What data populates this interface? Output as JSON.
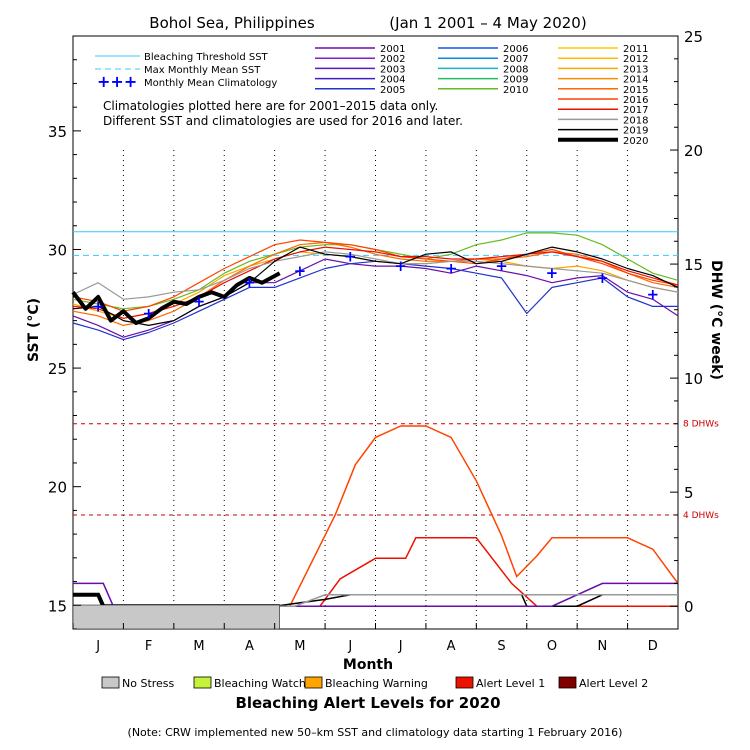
{
  "chart_data": {
    "type": "line",
    "title": "Bohol Sea, Philippines",
    "date_range": "(Jan 1 2001 – 4 May 2020)",
    "xlabel": "Month",
    "ylabel_left": "SST (°C)",
    "ylabel_right": "DHW (°C week)",
    "ylim_left": [
      14,
      39
    ],
    "ylim_right": [
      -1,
      25
    ],
    "left_ticks": [
      15,
      20,
      25,
      30,
      35
    ],
    "right_ticks": [
      0,
      5,
      10,
      15,
      20,
      25
    ],
    "months": [
      "J",
      "F",
      "M",
      "A",
      "M",
      "J",
      "J",
      "A",
      "S",
      "O",
      "N",
      "D"
    ],
    "thresholds": {
      "bleaching_threshold_sst": 30.75,
      "max_monthly_mean_sst": 29.75,
      "dhw_lines": [
        {
          "label": "4 DHWs",
          "value": 4
        },
        {
          "label": "8 DHWs",
          "value": 8
        }
      ]
    },
    "legend_reference": [
      {
        "label": "Bleaching Threshold SST",
        "style": "solid",
        "color": "#33ccff"
      },
      {
        "label": "Max Monthly Mean SST",
        "style": "dashed",
        "color": "#33ccff"
      },
      {
        "label": "Monthly Mean Climatology",
        "style": "plus",
        "color": "#0000ff"
      }
    ],
    "notes": [
      "Climatologies plotted here are for 2001–2015 data only.",
      "Different SST and climatologies are used for 2016 and later."
    ],
    "year_legend": [
      {
        "year": "2001",
        "color": "#6a0dad"
      },
      {
        "year": "2002",
        "color": "#7b1fd1"
      },
      {
        "year": "2003",
        "color": "#5e17c9"
      },
      {
        "year": "2004",
        "color": "#3f1fbf"
      },
      {
        "year": "2005",
        "color": "#2233cc"
      },
      {
        "year": "2006",
        "color": "#1155ee"
      },
      {
        "year": "2007",
        "color": "#0a88e0"
      },
      {
        "year": "2008",
        "color": "#16b3c9"
      },
      {
        "year": "2009",
        "color": "#22bb66"
      },
      {
        "year": "2010",
        "color": "#66bb22"
      },
      {
        "year": "2011",
        "color": "#ffcc00"
      },
      {
        "year": "2012",
        "color": "#ffbb00"
      },
      {
        "year": "2013",
        "color": "#ffa500"
      },
      {
        "year": "2014",
        "color": "#ff8c00"
      },
      {
        "year": "2015",
        "color": "#ff6a00"
      },
      {
        "year": "2016",
        "color": "#ff4400"
      },
      {
        "year": "2017",
        "color": "#ee1100"
      },
      {
        "year": "2018",
        "color": "#999999"
      },
      {
        "year": "2019",
        "color": "#000000"
      },
      {
        "year": "2020",
        "color": "#000000",
        "bold": true
      }
    ],
    "climatology": {
      "x": [
        0.5,
        1.5,
        2.5,
        3.5,
        4.5,
        5.5,
        6.5,
        7.5,
        8.5,
        9.5,
        10.5,
        11.5
      ],
      "values": [
        27.6,
        27.3,
        27.8,
        28.6,
        29.1,
        29.7,
        29.3,
        29.2,
        29.3,
        29.0,
        28.8,
        28.1
      ]
    },
    "series": [
      {
        "name": "2001",
        "x": [
          0,
          0.5,
          1,
          1.5,
          2,
          2.5,
          3,
          3.5,
          4,
          4.5,
          5,
          5.5,
          6,
          6.5,
          7,
          7.5,
          8,
          8.5,
          9,
          9.5,
          10,
          10.5,
          11,
          11.5,
          12
        ],
        "values": [
          27.2,
          26.8,
          26.3,
          26.6,
          27.0,
          27.6,
          28.0,
          28.6,
          28.6,
          29.1,
          29.6,
          29.4,
          29.3,
          29.3,
          29.2,
          29.0,
          29.3,
          29.1,
          28.9,
          28.6,
          28.8,
          28.9,
          28.2,
          27.9,
          27.2
        ]
      },
      {
        "name": "2005",
        "x": [
          0,
          0.5,
          1,
          1.5,
          2,
          2.5,
          3,
          3.5,
          4,
          4.5,
          5,
          5.5,
          6,
          6.5,
          7,
          7.5,
          8,
          8.5,
          9,
          9.5,
          10,
          10.5,
          11,
          11.5,
          12
        ],
        "values": [
          26.9,
          26.6,
          26.2,
          26.5,
          26.9,
          27.4,
          27.9,
          28.4,
          28.4,
          28.8,
          29.2,
          29.4,
          29.5,
          29.4,
          29.3,
          29.2,
          29.0,
          28.8,
          27.3,
          28.4,
          28.6,
          28.8,
          28.0,
          27.6,
          27.6
        ]
      },
      {
        "name": "2010",
        "x": [
          0,
          0.5,
          1,
          1.5,
          2,
          2.5,
          3,
          3.5,
          4,
          4.5,
          5,
          5.5,
          6,
          6.5,
          7,
          7.5,
          8,
          8.5,
          9,
          9.5,
          10,
          10.5,
          11,
          11.5,
          12
        ],
        "values": [
          27.9,
          27.7,
          27.5,
          27.6,
          27.9,
          28.3,
          29.0,
          29.5,
          29.8,
          30.1,
          30.2,
          30.2,
          30.0,
          29.8,
          29.6,
          29.8,
          30.2,
          30.4,
          30.7,
          30.7,
          30.6,
          30.2,
          29.6,
          29.0,
          28.7
        ]
      },
      {
        "name": "2013",
        "x": [
          0,
          0.5,
          1,
          1.5,
          2,
          2.5,
          3,
          3.5,
          4,
          4.5,
          5,
          5.5,
          6,
          6.5,
          7,
          7.5,
          8,
          8.5,
          9,
          9.5,
          10,
          10.5,
          11,
          11.5,
          12
        ],
        "values": [
          27.7,
          27.4,
          27.1,
          27.3,
          27.7,
          28.2,
          28.9,
          29.3,
          29.6,
          29.9,
          29.8,
          29.7,
          29.5,
          29.4,
          29.4,
          29.5,
          29.6,
          29.5,
          29.3,
          29.2,
          29.3,
          29.1,
          28.7,
          28.4,
          28.2
        ]
      },
      {
        "name": "2015",
        "x": [
          0,
          0.5,
          1,
          1.5,
          2,
          2.5,
          3,
          3.5,
          4,
          4.5,
          5,
          5.5,
          6,
          6.5,
          7,
          7.5,
          8,
          8.5,
          9,
          9.5,
          10,
          10.5,
          11,
          11.5,
          12
        ],
        "values": [
          27.4,
          27.2,
          26.8,
          27.0,
          27.4,
          28.0,
          28.7,
          29.3,
          29.8,
          30.2,
          30.3,
          30.1,
          29.8,
          29.6,
          29.5,
          29.5,
          29.6,
          29.6,
          29.7,
          29.9,
          29.8,
          29.5,
          29.0,
          28.6,
          28.4
        ]
      },
      {
        "name": "2016",
        "x": [
          0,
          0.5,
          1,
          1.5,
          2,
          2.5,
          3,
          3.5,
          4,
          4.5,
          5,
          5.5,
          6,
          6.5,
          7,
          7.5,
          8,
          8.5,
          9,
          9.5,
          10,
          10.5,
          11,
          11.5,
          12
        ],
        "values": [
          28.0,
          27.8,
          27.4,
          27.6,
          28.0,
          28.6,
          29.2,
          29.7,
          30.2,
          30.4,
          30.3,
          30.2,
          30.0,
          29.7,
          29.6,
          29.5,
          29.4,
          29.6,
          29.8,
          30.0,
          29.7,
          29.4,
          29.0,
          28.7,
          28.5
        ]
      },
      {
        "name": "2017",
        "x": [
          0,
          0.5,
          1,
          1.5,
          2,
          2.5,
          3,
          3.5,
          4,
          4.5,
          5,
          5.5,
          6,
          6.5,
          7,
          7.5,
          8,
          8.5,
          9,
          9.5,
          10,
          10.5,
          11,
          11.5,
          12
        ],
        "values": [
          27.6,
          27.5,
          27.1,
          27.3,
          27.6,
          28.0,
          28.6,
          29.1,
          29.6,
          29.9,
          30.1,
          30.0,
          29.9,
          29.7,
          29.7,
          29.6,
          29.6,
          29.7,
          29.8,
          29.9,
          29.7,
          29.5,
          29.1,
          28.8,
          28.5
        ]
      },
      {
        "name": "2018",
        "x": [
          0,
          0.5,
          1,
          1.5,
          2,
          2.5,
          3,
          3.5,
          4,
          4.5,
          5,
          5.5,
          6,
          6.5,
          7,
          7.5,
          8,
          8.5,
          9,
          9.5,
          10,
          10.5,
          11,
          11.5,
          12
        ],
        "values": [
          28.1,
          28.6,
          27.9,
          28.0,
          28.2,
          28.3,
          28.7,
          29.2,
          29.5,
          29.7,
          29.9,
          29.8,
          29.6,
          29.4,
          29.4,
          29.5,
          29.5,
          29.4,
          29.3,
          29.2,
          29.1,
          29.0,
          28.7,
          28.4,
          28.2
        ]
      },
      {
        "name": "2019",
        "x": [
          0,
          0.5,
          1,
          1.5,
          2,
          2.5,
          3,
          3.5,
          4,
          4.5,
          5,
          5.5,
          6,
          6.5,
          7,
          7.5,
          8,
          8.5,
          9,
          9.5,
          10,
          10.5,
          11,
          11.5,
          12
        ],
        "values": [
          27.5,
          27.6,
          27.0,
          26.8,
          27.0,
          27.6,
          28.0,
          28.6,
          29.5,
          30.1,
          29.8,
          29.7,
          29.5,
          29.4,
          29.8,
          29.9,
          29.4,
          29.5,
          29.8,
          30.1,
          29.9,
          29.6,
          29.2,
          28.9,
          28.4
        ]
      },
      {
        "name": "2020",
        "bold": true,
        "x": [
          0,
          0.25,
          0.5,
          0.75,
          1,
          1.25,
          1.5,
          1.75,
          2,
          2.25,
          2.5,
          2.75,
          3,
          3.25,
          3.5,
          3.75,
          4.1
        ],
        "values": [
          28.2,
          27.5,
          28.0,
          27.0,
          27.4,
          26.9,
          27.1,
          27.5,
          27.8,
          27.7,
          28.0,
          28.2,
          28.0,
          28.5,
          28.8,
          28.6,
          29.0
        ]
      }
    ],
    "dhw_series": [
      {
        "name": "2020",
        "x": [
          0,
          0.5,
          0.6,
          4.1
        ],
        "values": [
          0.5,
          0.5,
          0,
          0
        ]
      },
      {
        "name": "2016",
        "x": [
          0,
          4.3,
          5.2,
          5.6,
          6.0,
          6.5,
          7.0,
          7.5,
          8.0,
          8.5,
          8.8,
          9.2,
          9.5,
          10.0,
          11.0,
          11.5,
          12
        ],
        "values": [
          0,
          0,
          4.0,
          6.2,
          7.4,
          7.9,
          7.9,
          7.4,
          5.5,
          3.1,
          1.3,
          2.2,
          3.0,
          3.0,
          3.0,
          2.5,
          1.0
        ]
      },
      {
        "name": "2017",
        "x": [
          0,
          4.9,
          5.3,
          6.0,
          6.6,
          6.8,
          8.0,
          8.7,
          9.2,
          10.5,
          11.0,
          12
        ],
        "values": [
          0,
          0,
          1.2,
          2.1,
          2.1,
          3.0,
          3.0,
          1.0,
          0,
          0,
          0,
          0
        ]
      },
      {
        "name": "2019",
        "x": [
          0,
          4.0,
          5.0,
          5.5,
          8.9,
          9.0,
          10.0,
          10.5,
          12
        ],
        "values": [
          0,
          0,
          0.3,
          0.5,
          0.5,
          0,
          0,
          0.5,
          0.5
        ]
      },
      {
        "name": "2001",
        "x": [
          0,
          0.6,
          0.8,
          9.5,
          10.5,
          12
        ],
        "values": [
          1,
          1,
          0,
          0,
          1,
          1
        ]
      },
      {
        "name": "2018",
        "x": [
          0,
          4.4,
          5.0,
          6.0,
          12
        ],
        "values": [
          0,
          0,
          0.5,
          0.5,
          0.5
        ]
      }
    ],
    "alert_bar": [
      {
        "from": 0,
        "to": 4.1,
        "level": "No Stress"
      }
    ],
    "alert_legend_title": "Bleaching Alert Levels for 2020",
    "alert_legend": [
      {
        "label": "No Stress",
        "color": "#c8c8c8"
      },
      {
        "label": "Bleaching Watch",
        "color": "#c6f23a"
      },
      {
        "label": "Bleaching Warning",
        "color": "#ffa500"
      },
      {
        "label": "Alert Level 1",
        "color": "#ee1100"
      },
      {
        "label": "Alert Level 2",
        "color": "#800000"
      }
    ],
    "footnote": "(Note: CRW implemented new 50–km SST and climatology data starting 1 February 2016)"
  }
}
